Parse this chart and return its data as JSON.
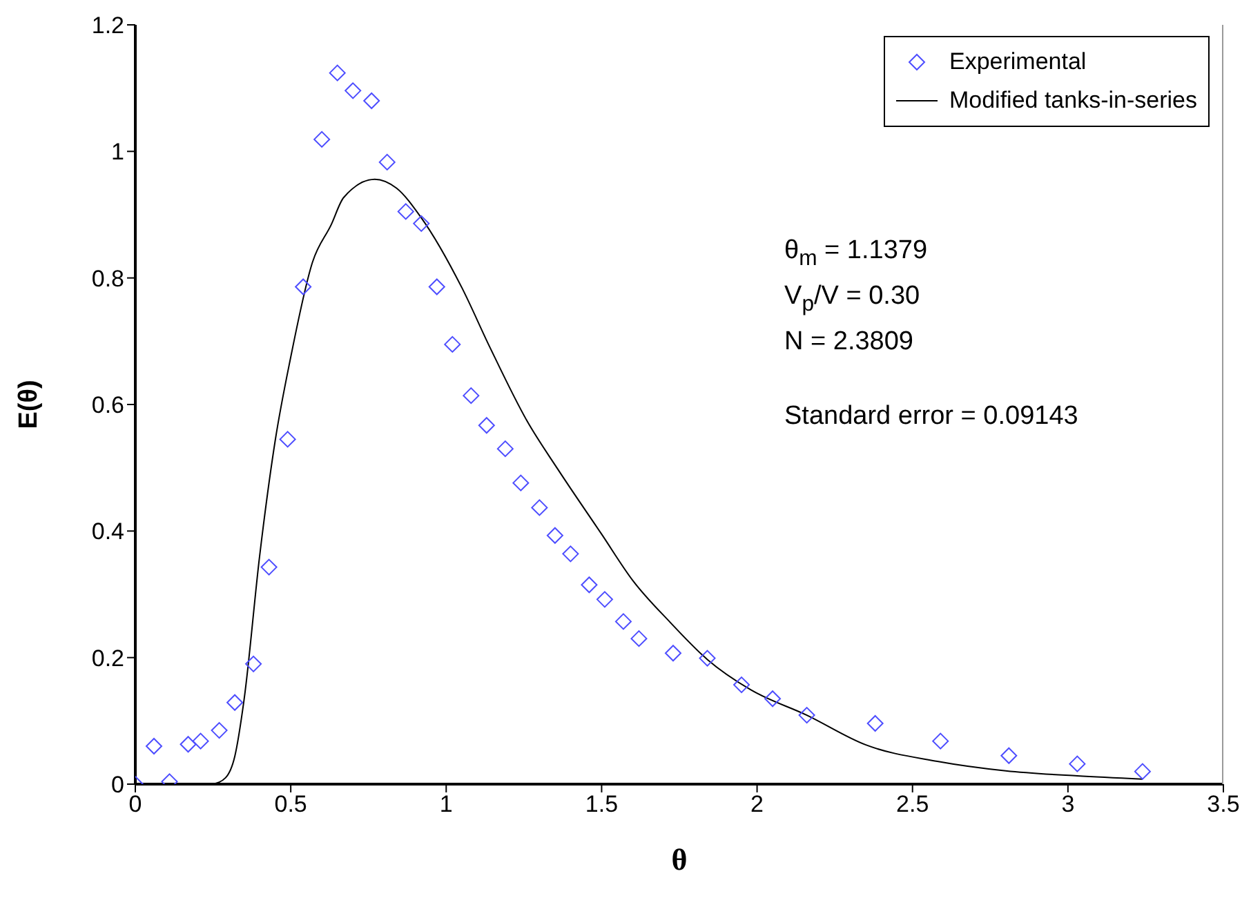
{
  "chart_data": {
    "type": "scatter",
    "xlabel": "θ",
    "ylabel": "E(θ)",
    "xlim": [
      0,
      3.5
    ],
    "xticks": [
      0,
      0.5,
      1,
      1.5,
      2,
      2.5,
      3,
      3.5
    ],
    "ylim": [
      0,
      1.2
    ],
    "yticks": [
      0,
      0.2,
      0.4,
      0.6,
      0.8,
      1,
      1.2
    ],
    "grid": false,
    "legend": "top right",
    "series": [
      {
        "name": "Experimental",
        "color": "#4d4dff",
        "marker": "diamond",
        "x": [
          0,
          0.06,
          0.11,
          0.17,
          0.21,
          0.27,
          0.32,
          0.38,
          0.43,
          0.49,
          0.54,
          0.6,
          0.65,
          0.7,
          0.76,
          0.81,
          0.87,
          0.92,
          0.97,
          1.02,
          1.08,
          1.13,
          1.19,
          1.24,
          1.3,
          1.35,
          1.4,
          1.46,
          1.51,
          1.57,
          1.62,
          1.73,
          1.84,
          1.95,
          2.05,
          2.16,
          2.38,
          2.59,
          2.81,
          3.03,
          3.24
        ],
        "values": [
          0,
          0.06,
          0.004,
          0.063,
          0.068,
          0.085,
          0.129,
          0.19,
          0.343,
          0.545,
          0.786,
          1.019,
          1.124,
          1.096,
          1.08,
          0.983,
          0.905,
          0.886,
          0.786,
          0.695,
          0.614,
          0.567,
          0.53,
          0.476,
          0.437,
          0.393,
          0.364,
          0.315,
          0.292,
          0.257,
          0.23,
          0.207,
          0.199,
          0.157,
          0.135,
          0.109,
          0.096,
          0.068,
          0.045,
          0.032,
          0.02
        ]
      },
      {
        "name": "Modified tanks-in-series",
        "type": "line",
        "color": "#000000",
        "marker": "none",
        "line_style": "solid",
        "x": [
          0.25,
          0.29,
          0.32,
          0.35,
          0.4,
          0.45,
          0.5,
          0.57,
          0.63,
          0.67,
          0.77,
          0.84,
          0.92,
          1.05,
          1.14,
          1.26,
          1.36,
          1.5,
          1.6,
          1.72,
          1.84,
          1.98,
          2.16,
          2.35,
          2.58,
          2.8,
          3.03,
          3.24
        ],
        "values": [
          0,
          0.01,
          0.044,
          0.134,
          0.361,
          0.543,
          0.675,
          0.825,
          0.884,
          0.927,
          0.956,
          0.942,
          0.895,
          0.785,
          0.691,
          0.574,
          0.497,
          0.395,
          0.322,
          0.256,
          0.197,
          0.149,
          0.109,
          0.062,
          0.036,
          0.021,
          0.013,
          0.008
        ]
      }
    ],
    "annotations": [
      "θ$_{m}$ = 1.1379",
      "V$_{p}$/V = 0.30",
      "N = 2.3809",
      "Standard error = 0.09143"
    ]
  }
}
